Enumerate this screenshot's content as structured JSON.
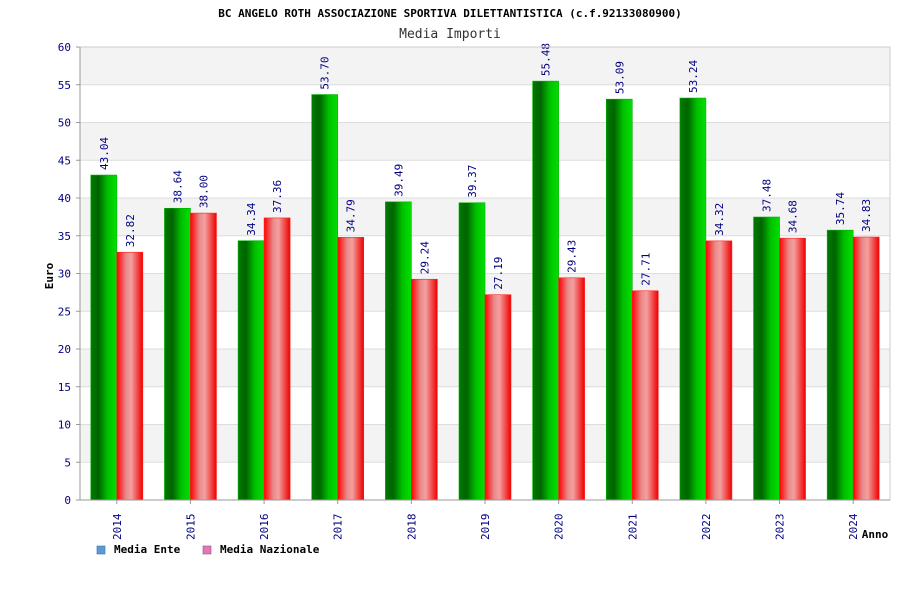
{
  "chart_data": {
    "type": "bar",
    "title": "BC ANGELO ROTH ASSOCIAZIONE SPORTIVA DILETTANTISTICA (c.f.92133080900)",
    "subtitle": "Media Importi",
    "xlabel": "Anno",
    "ylabel": "Euro",
    "ylim": [
      0,
      60
    ],
    "yticks": [
      "0",
      "5",
      "10",
      "15",
      "20",
      "25",
      "30",
      "35",
      "40",
      "45",
      "50",
      "55",
      "60"
    ],
    "categories": [
      "2014",
      "2015",
      "2016",
      "2017",
      "2018",
      "2019",
      "2020",
      "2021",
      "2022",
      "2023",
      "2024"
    ],
    "series": [
      {
        "name": "Media Ente",
        "color": "#00a000",
        "legend_color": "#5b9bd5",
        "values": [
          43.04,
          38.64,
          34.34,
          53.7,
          39.49,
          39.37,
          55.48,
          53.09,
          53.24,
          37.48,
          35.74
        ],
        "labels": [
          "43.04",
          "38.64",
          "34.34",
          "53.70",
          "39.49",
          "39.37",
          "55.48",
          "53.09",
          "53.24",
          "37.48",
          "35.74"
        ]
      },
      {
        "name": "Media Nazionale",
        "color": "#ee0000",
        "legend_color": "#e07ab0",
        "values": [
          32.82,
          38.0,
          37.36,
          34.79,
          29.24,
          27.19,
          29.43,
          27.71,
          34.32,
          34.68,
          34.83
        ],
        "labels": [
          "32.82",
          "38.00",
          "37.36",
          "34.79",
          "29.24",
          "27.19",
          "29.43",
          "27.71",
          "34.32",
          "34.68",
          "34.83"
        ]
      }
    ],
    "grid": true,
    "legend_position": "bottom-left"
  }
}
